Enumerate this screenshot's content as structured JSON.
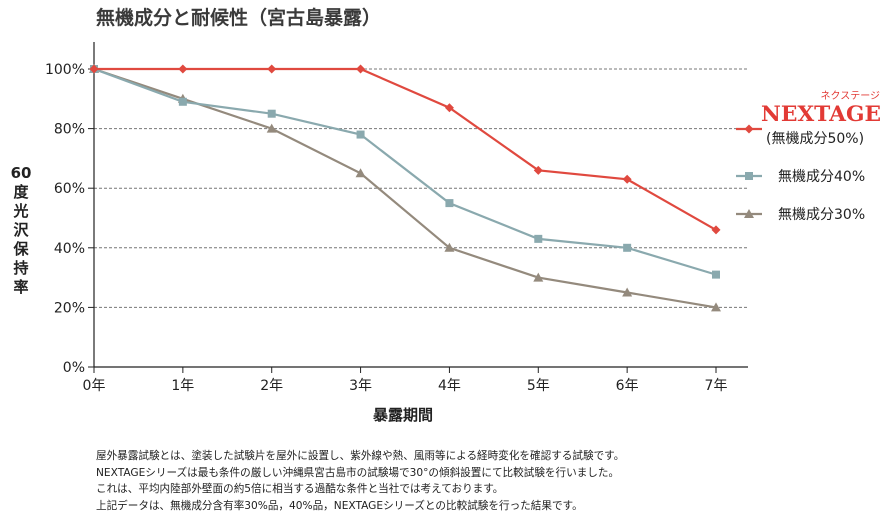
{
  "chart_data": {
    "type": "line",
    "title": "無機成分と耐候性（宮古島暴露）",
    "xlabel": "暴露期間",
    "ylabel": "60度光沢保持率",
    "categories": [
      "0年",
      "1年",
      "2年",
      "3年",
      "4年",
      "5年",
      "6年",
      "7年"
    ],
    "x": [
      0,
      1,
      2,
      3,
      4,
      5,
      6,
      7
    ],
    "yticks": [
      "0%",
      "20%",
      "40%",
      "60%",
      "80%",
      "100%"
    ],
    "ylim": [
      0,
      100
    ],
    "grid": "horizontal dashed",
    "legend_position": "right",
    "series": [
      {
        "name": "(無機成分50%)",
        "brand": "NEXTAGE",
        "brand_ruby": "ネクステージ",
        "marker": "diamond",
        "color": "#e0493f",
        "values": [
          100,
          100,
          100,
          100,
          87,
          66,
          63,
          46
        ]
      },
      {
        "name": "無機成分40%",
        "marker": "square",
        "color": "#8aa9ae",
        "values": [
          100,
          89,
          85,
          78,
          55,
          43,
          40,
          31
        ]
      },
      {
        "name": "無機成分30%",
        "marker": "triangle",
        "color": "#948a7d",
        "values": [
          100,
          90,
          80,
          65,
          40,
          30,
          25,
          20
        ]
      }
    ]
  },
  "notes": [
    "屋外暴露試験とは、塗装した試験片を屋外に設置し、紫外線や熱、風雨等による経時変化を確認する試験です。",
    "NEXTAGEシリーズは最も条件の厳しい沖縄県宮古島市の試験場で30°の傾斜設置にて比較試験を行いました。",
    "これは、平均内陸部外壁面の約5倍に相当する過酷な条件と当社では考えております。",
    "上記データは、無機成分含有率30%品，40%品，NEXTAGEシリーズとの比較試験を行った結果です。"
  ]
}
